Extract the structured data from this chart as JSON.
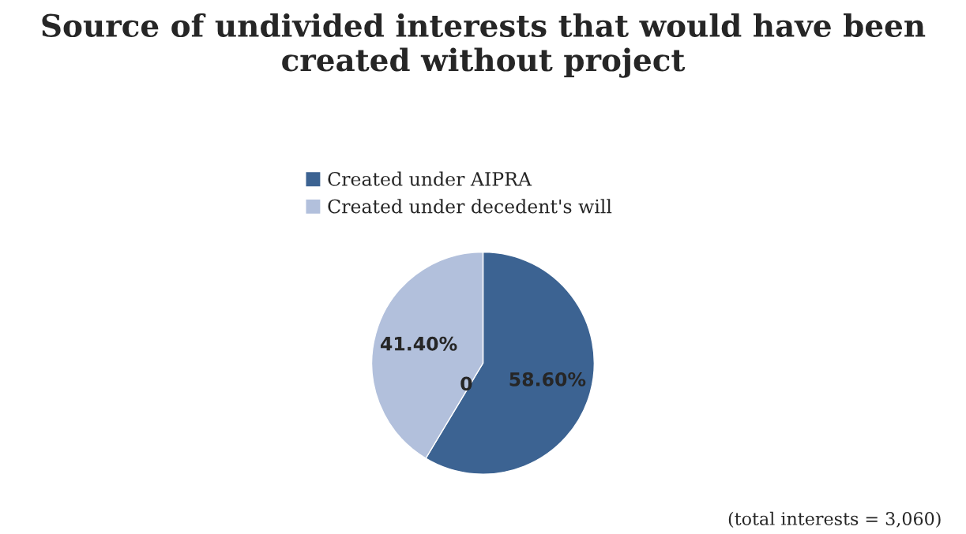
{
  "chart_data": {
    "type": "pie",
    "title": "Source of undivided interests that would have been created without project",
    "categories": [
      "Created under AIPRA",
      "Created under decedent's will"
    ],
    "values": [
      58.6,
      41.4
    ],
    "colors": [
      "#3c6392",
      "#b2c0dc"
    ],
    "value_labels": [
      "58.60%",
      "41.40%"
    ],
    "legend": "top",
    "annotations": [
      "0",
      "(total interests = 3,060)"
    ]
  }
}
